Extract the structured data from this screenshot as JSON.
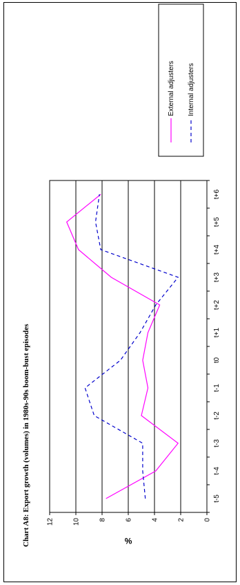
{
  "chart_data": {
    "type": "line",
    "title": "Chart A8: Export growth (volumes) in 1980s-90s boom-bust episodes",
    "xlabel": "",
    "ylabel": "%",
    "categories": [
      "t-5",
      "t-4",
      "t-3",
      "t-2",
      "t-1",
      "t0",
      "t+1",
      "t+2",
      "t+3",
      "t+4",
      "t+5",
      "t+6"
    ],
    "ylim": [
      0,
      12
    ],
    "yticks": [
      0,
      2,
      4,
      6,
      8,
      10,
      12
    ],
    "grid": true,
    "legend_position": "right",
    "series": [
      {
        "name": "External adjusters",
        "color": "#ff00ff",
        "style": "solid",
        "values": [
          7.7,
          3.9,
          2.2,
          5.0,
          4.5,
          4.9,
          4.5,
          3.6,
          7.3,
          9.8,
          10.7,
          8.1
        ]
      },
      {
        "name": "Internal adjusters",
        "color": "#0000cc",
        "style": "dashed",
        "values": [
          4.7,
          4.9,
          4.9,
          8.6,
          9.3,
          6.6,
          5.1,
          3.9,
          2.2,
          8.1,
          8.5,
          8.2
        ]
      }
    ]
  }
}
